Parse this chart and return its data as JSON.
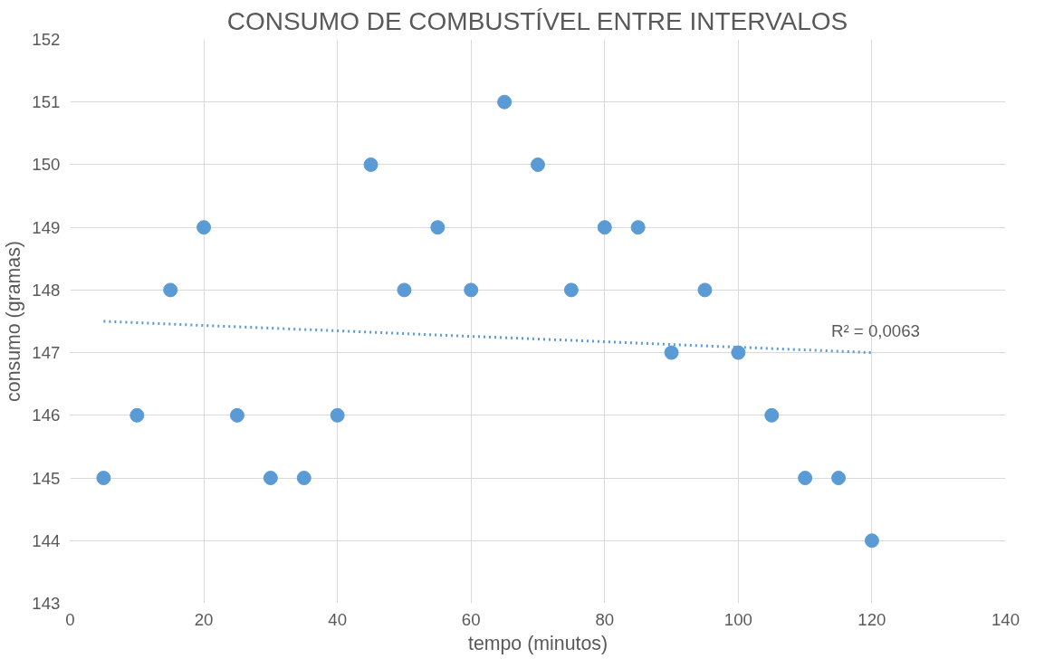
{
  "chart_data": {
    "type": "scatter",
    "title": "CONSUMO DE COMBUSTÍVEL ENTRE INTERVALOS",
    "xlabel": "tempo (minutos)",
    "ylabel": "consumo (gramas)",
    "xlim": [
      0,
      140
    ],
    "xticks": [
      0,
      20,
      40,
      60,
      80,
      100,
      120,
      140
    ],
    "ylim": [
      143,
      152
    ],
    "yticks": [
      143,
      144,
      145,
      146,
      147,
      148,
      149,
      150,
      151,
      152
    ],
    "grid": true,
    "series": [
      {
        "color": "#5b9bd5",
        "marker": "circle",
        "x": [
          5,
          10,
          15,
          20,
          25,
          30,
          35,
          40,
          45,
          50,
          55,
          60,
          65,
          70,
          75,
          80,
          85,
          90,
          95,
          100,
          105,
          110,
          115,
          120
        ],
        "values": [
          145,
          146,
          148,
          149,
          146,
          145,
          145,
          146,
          150,
          148,
          149,
          148,
          151,
          150,
          148,
          149,
          149,
          147,
          148,
          147,
          146,
          145,
          145,
          144
        ]
      },
      {
        "type": "line",
        "color": "#5b9bd5",
        "line_style": "dotted",
        "x": [
          5,
          120
        ],
        "values": [
          147.5,
          147.0
        ]
      }
    ],
    "annotations": [
      {
        "text": "R² = 0,0063",
        "x": 120,
        "y": 147.0
      }
    ]
  }
}
